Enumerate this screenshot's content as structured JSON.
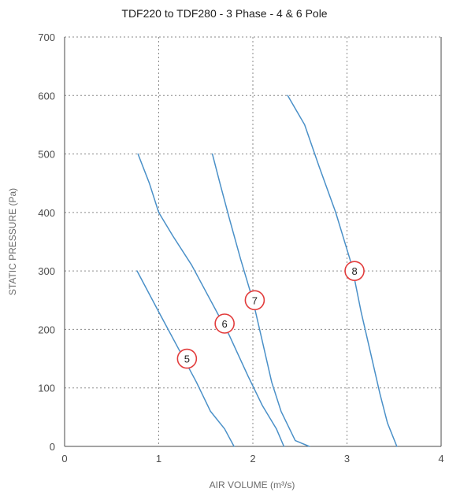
{
  "chart_data": {
    "type": "line",
    "title": "TDF220 to TDF280 - 3 Phase - 4 & 6 Pole",
    "xlabel": "AIR VOLUME (m³/s)",
    "ylabel": "STATIC PRESSURE (Pa)",
    "xlim": [
      0,
      4
    ],
    "ylim": [
      0,
      700
    ],
    "x_ticks": [
      "0",
      "1",
      "2",
      "3",
      "4"
    ],
    "y_ticks": [
      "0",
      "100",
      "200",
      "300",
      "400",
      "500",
      "600",
      "700"
    ],
    "x_tick_values": [
      0,
      1,
      2,
      3,
      4
    ],
    "y_tick_values": [
      0,
      100,
      200,
      300,
      400,
      500,
      600,
      700
    ],
    "grid": true,
    "line_color": "#4a90c8",
    "marker_color": "#e23c3c",
    "series": [
      {
        "name": "5",
        "label_point": [
          1.3,
          150
        ],
        "points": [
          [
            0.77,
            300
          ],
          [
            1.0,
            230
          ],
          [
            1.2,
            170
          ],
          [
            1.4,
            110
          ],
          [
            1.55,
            60
          ],
          [
            1.7,
            30
          ],
          [
            1.8,
            0
          ]
        ]
      },
      {
        "name": "6",
        "label_point": [
          1.7,
          210
        ],
        "points": [
          [
            0.78,
            500
          ],
          [
            0.9,
            450
          ],
          [
            1.0,
            400
          ],
          [
            1.15,
            360
          ],
          [
            1.35,
            310
          ],
          [
            1.55,
            250
          ],
          [
            1.75,
            190
          ],
          [
            1.95,
            120
          ],
          [
            2.1,
            70
          ],
          [
            2.25,
            30
          ],
          [
            2.33,
            0
          ]
        ]
      },
      {
        "name": "7",
        "label_point": [
          2.02,
          250
        ],
        "points": [
          [
            1.57,
            500
          ],
          [
            1.65,
            450
          ],
          [
            1.75,
            390
          ],
          [
            1.87,
            320
          ],
          [
            2.0,
            250
          ],
          [
            2.1,
            180
          ],
          [
            2.2,
            110
          ],
          [
            2.3,
            60
          ],
          [
            2.45,
            10
          ],
          [
            2.6,
            0
          ]
        ]
      },
      {
        "name": "8",
        "label_point": [
          3.08,
          300
        ],
        "points": [
          [
            2.37,
            600
          ],
          [
            2.55,
            550
          ],
          [
            2.7,
            480
          ],
          [
            2.88,
            400
          ],
          [
            3.05,
            310
          ],
          [
            3.15,
            230
          ],
          [
            3.25,
            160
          ],
          [
            3.35,
            90
          ],
          [
            3.43,
            40
          ],
          [
            3.53,
            0
          ]
        ]
      }
    ]
  }
}
